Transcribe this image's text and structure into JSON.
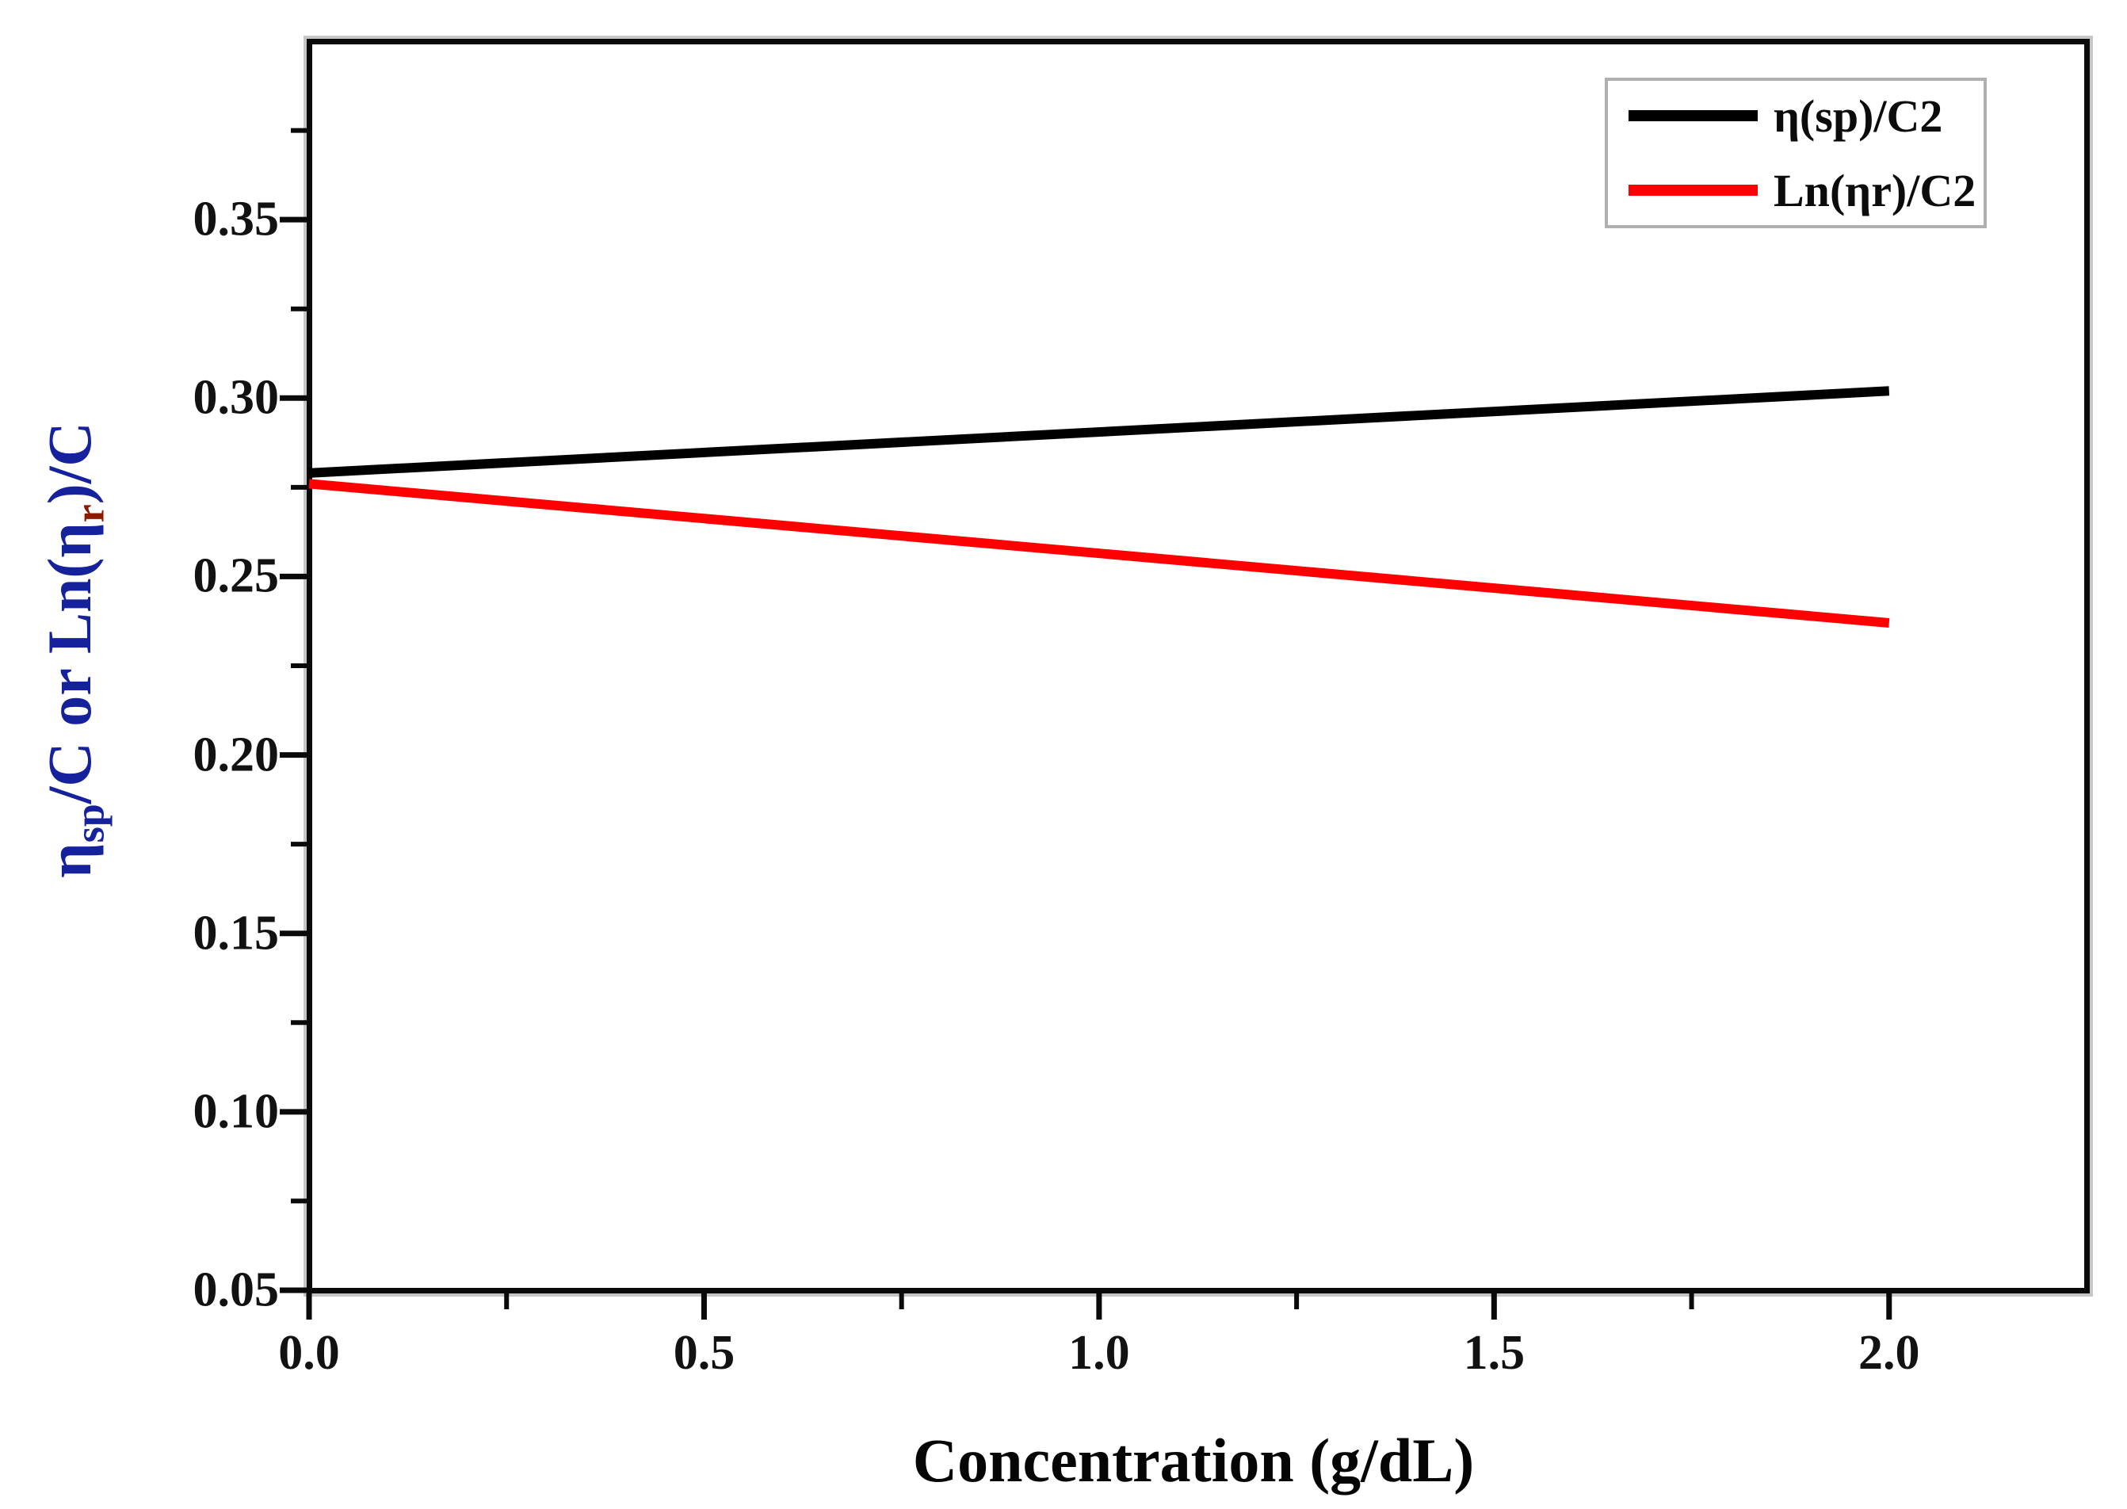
{
  "figure": {
    "background_color": "#ffffff",
    "frame_color": "#0a0a0a",
    "frame_halo_color": "#c6c6c6",
    "tick_label_color": "#121212"
  },
  "x_axis_label": {
    "text": "Concentration (g/dL)"
  },
  "y_axis_label": {
    "part1": "η",
    "sub1": "sp",
    "part2": "/C or Ln(η",
    "sub2": "r",
    "part3": ")/C",
    "main_color": "#16219c",
    "sub_r_color": "#8c1a00"
  },
  "legend": {
    "position": "top-right",
    "border_color": "#b0b0b0"
  },
  "chart_data": {
    "type": "line",
    "title": "",
    "xlabel": "Concentration (g/dL)",
    "ylabel": "η_sp/C or Ln(η_r)/C",
    "xlim": [
      0,
      2.25
    ],
    "ylim": [
      0.05,
      0.4
    ],
    "grid": false,
    "legend_position": "top-right",
    "x_major_ticks": [
      {
        "value": 0.0,
        "label": "0.0"
      },
      {
        "value": 0.5,
        "label": "0.5"
      },
      {
        "value": 1.0,
        "label": "1.0"
      },
      {
        "value": 1.5,
        "label": "1.5"
      },
      {
        "value": 2.0,
        "label": "2.0"
      }
    ],
    "x_minor_ticks": [
      0.25,
      0.75,
      1.25,
      1.75
    ],
    "y_major_ticks": [
      {
        "value": 0.05,
        "label": "0.05"
      },
      {
        "value": 0.1,
        "label": "0.10"
      },
      {
        "value": 0.15,
        "label": "0.15"
      },
      {
        "value": 0.2,
        "label": "0.20"
      },
      {
        "value": 0.25,
        "label": "0.25"
      },
      {
        "value": 0.3,
        "label": "0.30"
      },
      {
        "value": 0.35,
        "label": "0.35"
      }
    ],
    "y_minor_ticks": [
      0.075,
      0.125,
      0.175,
      0.225,
      0.275,
      0.325,
      0.375
    ],
    "series": [
      {
        "name": "η(sp)/C2",
        "color": "#000000",
        "line_width": 12,
        "x": [
          0.0,
          2.0
        ],
        "values": [
          0.279,
          0.302
        ]
      },
      {
        "name": "Ln(ηr)/C2",
        "color": "#ff0000",
        "line_width": 12,
        "x": [
          0.0,
          2.0
        ],
        "values": [
          0.276,
          0.237
        ]
      }
    ]
  }
}
